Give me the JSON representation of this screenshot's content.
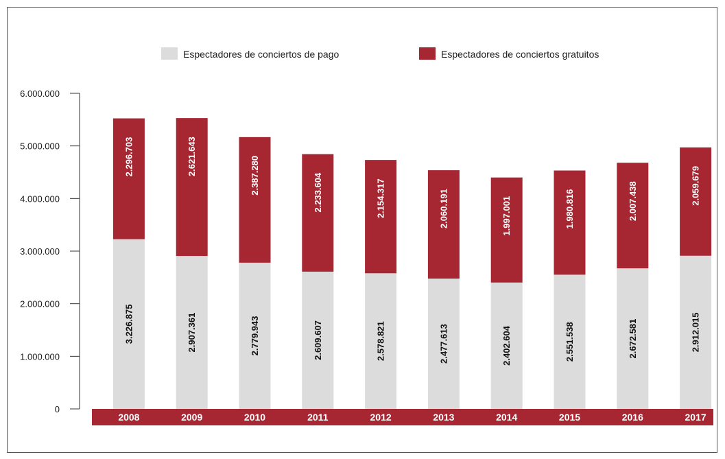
{
  "colors": {
    "paid": "#dcdcdc",
    "free": "#a62632",
    "axis": "#333333",
    "paid_label": "#111111",
    "free_label": "#ffffff",
    "band": "#a62632"
  },
  "chart_data": {
    "type": "bar",
    "stacked": true,
    "title": "",
    "xlabel": "",
    "ylabel": "",
    "categories": [
      "2008",
      "2009",
      "2010",
      "2011",
      "2012",
      "2013",
      "2014",
      "2015",
      "2016",
      "2017"
    ],
    "series": [
      {
        "name": "Espectadores de conciertos de pago",
        "values": [
          3226875,
          2907361,
          2779943,
          2609607,
          2578821,
          2477613,
          2402604,
          2551538,
          2672581,
          2912015
        ],
        "labels": [
          "3.226.875",
          "2.907.361",
          "2.779.943",
          "2.609.607",
          "2.578.821",
          "2.477.613",
          "2.402.604",
          "2.551.538",
          "2.672.581",
          "2.912.015"
        ]
      },
      {
        "name": "Espectadores de conciertos gratuitos",
        "values": [
          2296703,
          2621643,
          2387280,
          2233604,
          2154317,
          2060191,
          1997001,
          1980816,
          2007438,
          2059679
        ],
        "labels": [
          "2.296.703",
          "2.621.643",
          "2.387.280",
          "2.233.604",
          "2.154.317",
          "2.060.191",
          "1.997.001",
          "1.980.816",
          "2.007.438",
          "2.059.679"
        ]
      }
    ],
    "ylim": [
      0,
      6000000
    ],
    "yticks": [
      0,
      1000000,
      2000000,
      3000000,
      4000000,
      5000000,
      6000000
    ],
    "ytick_labels": [
      "0",
      "1.000.000",
      "2.000.000",
      "3.000.000",
      "4.000.000",
      "5.000.000",
      "6.000.000"
    ],
    "grid": false,
    "legend": "top"
  }
}
